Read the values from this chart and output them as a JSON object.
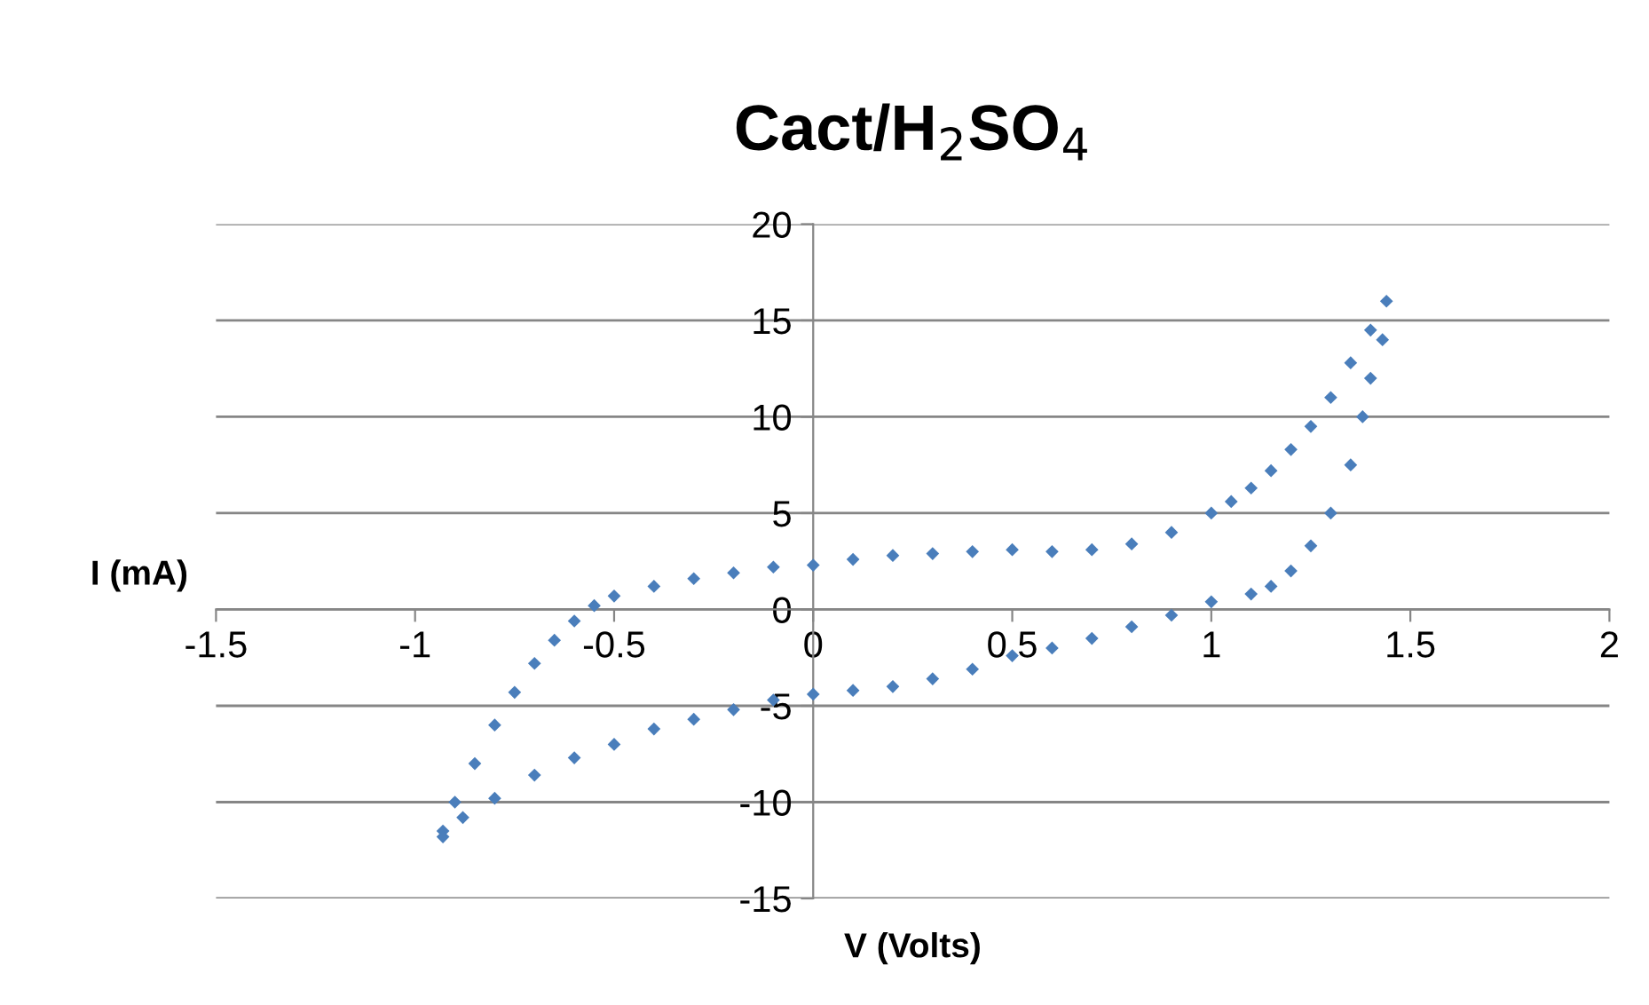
{
  "chart_data": {
    "type": "scatter",
    "title": "Cact/H$_{2}$SO$_{4}$",
    "xlabel": "V (Volts)",
    "ylabel": "I (mA)",
    "xlim": [
      -1.5,
      2
    ],
    "xticks": [
      -1.5,
      -1,
      -0.5,
      0,
      0.5,
      1,
      1.5,
      2
    ],
    "ylim": [
      -15,
      20
    ],
    "yticks": [
      -15,
      -10,
      -5,
      0,
      5,
      10,
      15,
      20
    ],
    "grid": "y",
    "marker": "diamond",
    "legend": false,
    "series": [
      {
        "color": "#4a7ebb",
        "x": [
          -0.93,
          -0.9,
          -0.85,
          -0.8,
          -0.75,
          -0.7,
          -0.65,
          -0.6,
          -0.55,
          -0.5,
          -0.4,
          -0.3,
          -0.2,
          -0.1,
          0,
          0.1,
          0.2,
          0.3,
          0.4,
          0.5,
          0.6,
          0.7,
          0.8,
          0.9,
          1.0,
          1.05,
          1.1,
          1.15,
          1.2,
          1.25,
          1.3,
          1.35,
          1.4,
          1.44,
          1.43,
          1.4,
          1.38,
          1.35,
          1.3,
          1.25,
          1.2,
          1.15,
          1.1,
          1.0,
          0.9,
          0.8,
          0.7,
          0.6,
          0.5,
          0.4,
          0.3,
          0.2,
          0.1,
          0,
          -0.1,
          -0.2,
          -0.3,
          -0.4,
          -0.5,
          -0.6,
          -0.7,
          -0.8,
          -0.88,
          -0.93
        ],
        "values": [
          -11.5,
          -10,
          -8,
          -6,
          -4.3,
          -2.8,
          -1.6,
          -0.6,
          0.2,
          0.7,
          1.2,
          1.6,
          1.9,
          2.2,
          2.3,
          2.6,
          2.8,
          2.9,
          3.0,
          3.1,
          3.0,
          3.1,
          3.4,
          4.0,
          5.0,
          5.6,
          6.3,
          7.2,
          8.3,
          9.5,
          11,
          12.8,
          14.5,
          16,
          14,
          12,
          10,
          7.5,
          5,
          3.3,
          2,
          1.2,
          0.8,
          0.4,
          -0.3,
          -0.9,
          -1.5,
          -2.0,
          -2.4,
          -3.1,
          -3.6,
          -4.0,
          -4.2,
          -4.4,
          -4.7,
          -5.2,
          -5.7,
          -6.2,
          -7.0,
          -7.7,
          -8.6,
          -9.8,
          -10.8,
          -11.8
        ]
      }
    ]
  }
}
